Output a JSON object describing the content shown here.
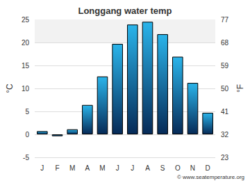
{
  "chart_data": {
    "type": "bar",
    "title": "Longgang water temp",
    "categories": [
      "J",
      "F",
      "M",
      "A",
      "M",
      "J",
      "J",
      "A",
      "S",
      "O",
      "N",
      "D"
    ],
    "values": [
      0.7,
      -0.4,
      1.1,
      6.4,
      12.6,
      19.7,
      23.9,
      24.5,
      21.8,
      16.9,
      11.2,
      4.7
    ],
    "color": "#2ab4ea",
    "y_label": "°C",
    "ylim": [
      -5,
      25
    ],
    "yticks": [
      -5,
      0,
      5,
      10,
      15,
      20,
      25
    ],
    "y2_label": "°F",
    "y2lim": [
      23,
      77
    ],
    "y2ticks": [
      23,
      32,
      41,
      50,
      59,
      68,
      77
    ],
    "grid": true,
    "annotations": [
      "© www.seatemperature.org"
    ]
  }
}
